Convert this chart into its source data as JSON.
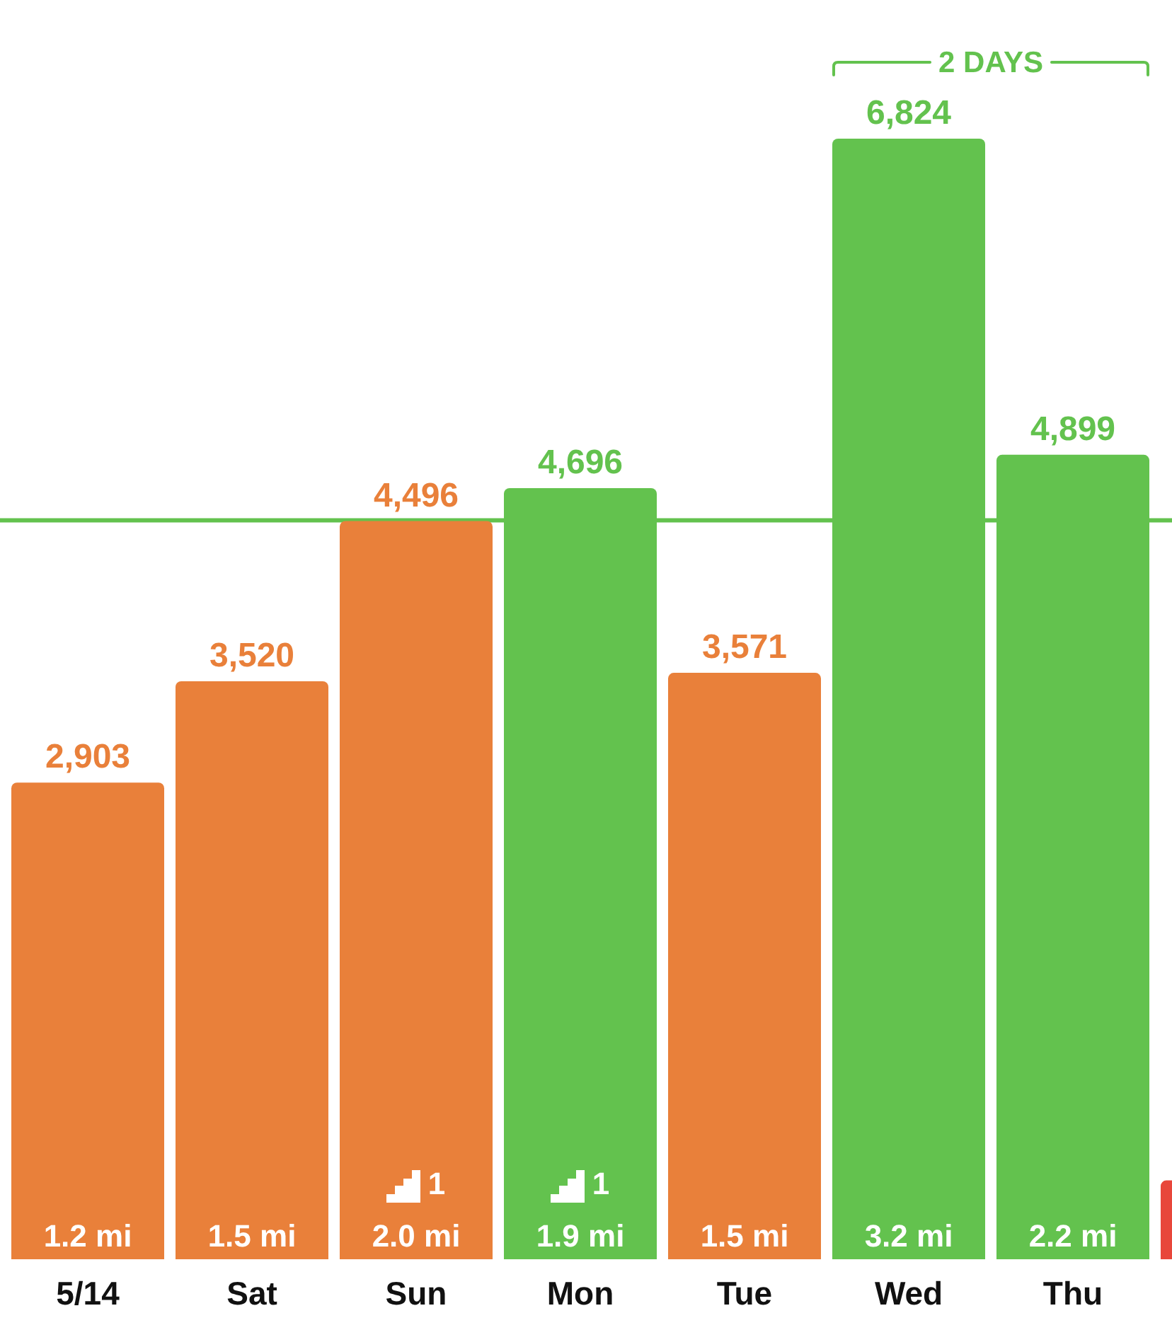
{
  "chart_data": {
    "type": "bar",
    "categories": [
      "5/14",
      "Sat",
      "Sun",
      "Mon",
      "Tue",
      "Wed",
      "Thu",
      null
    ],
    "values": [
      2903,
      3520,
      4496,
      4696,
      3571,
      6824,
      4899,
      480
    ],
    "colors": [
      "#e9803a",
      "#e9803a",
      "#e9803a",
      "#63c24e",
      "#e9803a",
      "#63c24e",
      "#63c24e",
      "#e8473b"
    ],
    "value_labels": [
      "2,903",
      "3,520",
      "4,496",
      "4,696",
      "3,571",
      "6,824",
      "4,899",
      null
    ],
    "tick_labels": "x",
    "ref_lines": [
      {
        "axis": "y",
        "value": 4500,
        "color": "#63c24e"
      }
    ],
    "annotations": [
      "2 DAYS",
      {
        "text": "1.2 mi",
        "x": "5/14",
        "y": 0
      },
      {
        "text": "1.5 mi",
        "x": "Sat",
        "y": 0
      },
      {
        "text": "2.0 mi",
        "x": "Sun",
        "y": 0
      },
      {
        "text": "1.9 mi",
        "x": "Mon",
        "y": 0
      },
      {
        "text": "1.5 mi",
        "x": "Tue",
        "y": 0
      },
      {
        "text": "3.2 mi",
        "x": "Wed",
        "y": 0
      },
      {
        "text": "2.2 mi",
        "x": "Thu",
        "y": 0
      },
      {
        "text": "1",
        "x": "Sun",
        "y": 0
      },
      {
        "text": "1",
        "x": "Mon",
        "y": 0
      }
    ]
  }
}
